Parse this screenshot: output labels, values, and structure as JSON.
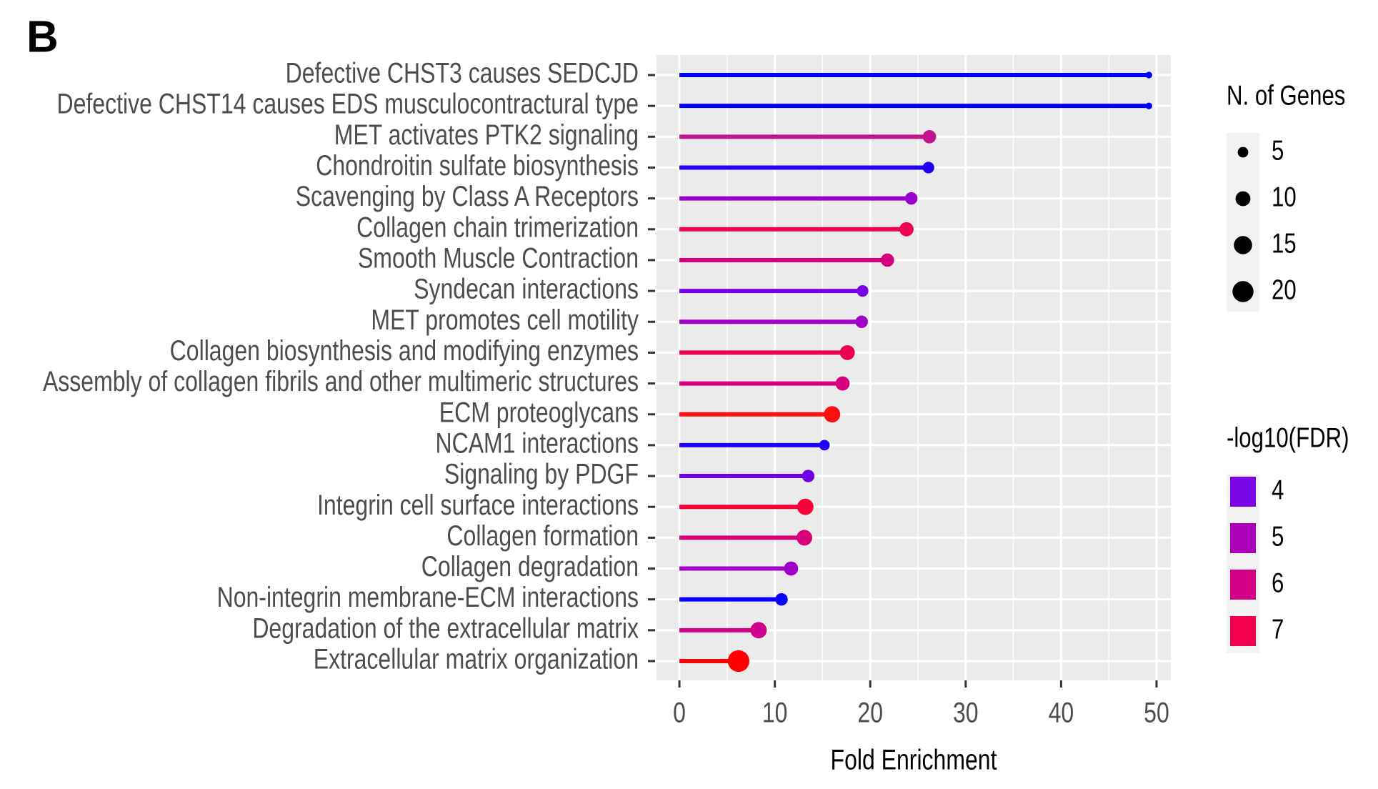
{
  "chart_data": {
    "type": "lollipop",
    "panel_label": "B",
    "x_label": "Fold Enrichment",
    "categories": [
      "Defective CHST3 causes SEDCJD",
      "Defective CHST14 causes EDS musculocontractural type",
      "MET activates PTK2 signaling",
      "Chondroitin sulfate biosynthesis",
      "Scavenging by Class A Receptors",
      "Collagen chain trimerization",
      "Smooth Muscle Contraction",
      "Syndecan interactions",
      "MET promotes cell motility",
      "Collagen biosynthesis and modifying enzymes",
      "Assembly of collagen fibrils and other multimeric structures",
      "ECM proteoglycans",
      "NCAM1 interactions",
      "Signaling by PDGF",
      "Integrin cell surface interactions",
      "Collagen formation",
      "Collagen degradation",
      "Non-integrin membrane-ECM interactions",
      "Degradation of the extracellular matrix",
      "Extracellular matrix organization"
    ],
    "values": [
      49.2,
      49.2,
      26.2,
      26.1,
      24.3,
      23.8,
      21.8,
      19.2,
      19.1,
      17.6,
      17.1,
      16.0,
      15.2,
      13.5,
      13.2,
      13.1,
      11.7,
      10.7,
      8.3,
      6.2
    ],
    "sizes": [
      2,
      2,
      8,
      6,
      7,
      9,
      8,
      6,
      7,
      10,
      9,
      12,
      5,
      7,
      12,
      11,
      9,
      7,
      12,
      21
    ],
    "colors": [
      "#0000ff",
      "#0000ff",
      "#c0158c",
      "#2200f5",
      "#9a00d0",
      "#ee0050",
      "#d6007e",
      "#7a00e6",
      "#a000c8",
      "#ee0050",
      "#d6007e",
      "#ff1010",
      "#1e00ff",
      "#7000e8",
      "#f8003a",
      "#d8007a",
      "#a000c8",
      "#0a00ff",
      "#d0008a",
      "#ff0000"
    ],
    "xlim": [
      -2.4,
      51.5
    ],
    "xticks": [
      0,
      10,
      20,
      30,
      40,
      50
    ],
    "grid": true,
    "size_legend": {
      "title": "N. of Genes",
      "values": [
        5,
        10,
        15,
        20
      ]
    },
    "color_legend": {
      "title": "-log10(FDR)",
      "values": [
        4,
        5,
        6,
        7
      ],
      "colors": [
        "#7a06e8",
        "#aa00b8",
        "#d30085",
        "#f2004d"
      ]
    }
  }
}
